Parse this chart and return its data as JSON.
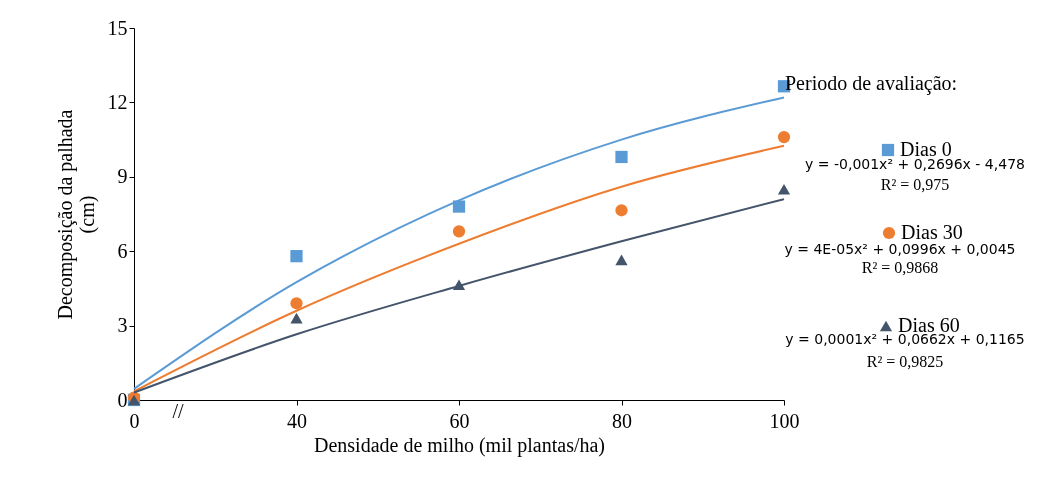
{
  "chart_data": {
    "type": "scatter",
    "categories": [
      "0",
      "40",
      "60",
      "80",
      "100"
    ],
    "xlabel": "Densidade de milho  (mil plantas/ha)",
    "ylabel": "Decomposição da palhada (cm)",
    "ylim": [
      0,
      15
    ],
    "yticks": [
      0,
      3,
      6,
      9,
      12,
      15
    ],
    "grid": false,
    "legend": "right",
    "legend_title": "Periodo de avaliação:",
    "series": [
      {
        "name": "Dias 0",
        "marker": "square",
        "color": "#5b9bd5",
        "values": [
          0,
          5.8,
          7.8,
          9.8,
          12.65
        ]
      },
      {
        "name": "Dias 30",
        "marker": "circle",
        "color": "#ed7d31",
        "values": [
          0.1,
          3.9,
          6.8,
          7.65,
          10.6
        ]
      },
      {
        "name": "Dias  60",
        "marker": "triangle",
        "color": "#44546a",
        "values": [
          0,
          3.3,
          4.65,
          5.65,
          8.5
        ]
      },
      {
        "type": "line",
        "color": "#5b9bd5",
        "values": [
          0.45,
          4.75,
          8.05,
          10.5,
          12.2
        ]
      },
      {
        "type": "line",
        "color": "#ed7d31",
        "values": [
          0.35,
          3.6,
          6.3,
          8.6,
          10.25
        ]
      },
      {
        "type": "line",
        "color": "#44546a",
        "values": [
          0.3,
          2.65,
          4.6,
          6.4,
          8.1
        ]
      }
    ],
    "annotations": [
      "y = -0,001x²  + 0,2696x  - 4,478",
      "R² = 0,975",
      "y = 4E-05x² + 0,0996x + 0,0045",
      "R² = 0,9868",
      "y = 0,0001x²  + 0,0662x  + 0,1165",
      "R² = 0,9825",
      "//"
    ]
  }
}
